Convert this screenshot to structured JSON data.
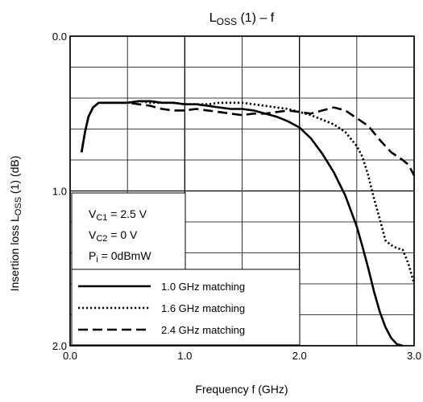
{
  "chart_data": {
    "type": "line",
    "title_main": "L",
    "title_sub": "OSS",
    "title_rest": " (1) – f",
    "xlabel": "Frequency   f   (GHz)",
    "ylabel_part1": "Insertion loss   L",
    "ylabel_sub": "OSS",
    "ylabel_part2": " (1)     (dB)",
    "xlim": [
      0.0,
      3.0
    ],
    "ylim": [
      0.0,
      2.0
    ],
    "y_inverted": true,
    "x_ticks": [
      "0.0",
      "1.0",
      "2.0",
      "3.0"
    ],
    "y_ticks": [
      "0.0",
      "1.0",
      "2.0"
    ],
    "grid": true,
    "conditions": [
      {
        "main": "V",
        "sub": "C1",
        "rest": " = 2.5 V"
      },
      {
        "main": "V",
        "sub": "C2",
        "rest": " = 0 V"
      },
      {
        "main": "P",
        "sub": "i",
        "rest": " = 0dBmW"
      }
    ],
    "legend_position": "bottom-left",
    "series": [
      {
        "name": "1.0 GHz matching",
        "style": "solid",
        "x": [
          0.1,
          0.13,
          0.16,
          0.2,
          0.25,
          0.3,
          0.4,
          0.5,
          0.6,
          0.7,
          0.8,
          0.9,
          1.0,
          1.1,
          1.2,
          1.3,
          1.4,
          1.5,
          1.6,
          1.7,
          1.8,
          1.9,
          2.0,
          2.1,
          2.2,
          2.3,
          2.4,
          2.5,
          2.55,
          2.6,
          2.65,
          2.7,
          2.75,
          2.8,
          2.85,
          2.9
        ],
        "y": [
          0.75,
          0.62,
          0.52,
          0.46,
          0.43,
          0.43,
          0.43,
          0.43,
          0.42,
          0.42,
          0.43,
          0.43,
          0.44,
          0.44,
          0.45,
          0.46,
          0.47,
          0.47,
          0.48,
          0.5,
          0.52,
          0.55,
          0.59,
          0.66,
          0.76,
          0.88,
          1.03,
          1.23,
          1.36,
          1.5,
          1.65,
          1.78,
          1.88,
          1.95,
          1.99,
          2.0
        ]
      },
      {
        "name": "1.6 GHz matching",
        "style": "dotted",
        "x": [
          0.1,
          0.13,
          0.16,
          0.2,
          0.25,
          0.3,
          0.4,
          0.5,
          0.6,
          0.7,
          0.8,
          0.9,
          1.0,
          1.1,
          1.2,
          1.3,
          1.4,
          1.5,
          1.6,
          1.7,
          1.8,
          1.9,
          2.0,
          2.1,
          2.2,
          2.3,
          2.4,
          2.5,
          2.55,
          2.6,
          2.65,
          2.7,
          2.75,
          2.8,
          2.85,
          2.9,
          2.95,
          3.0
        ],
        "y": [
          0.75,
          0.62,
          0.52,
          0.46,
          0.43,
          0.43,
          0.43,
          0.43,
          0.42,
          0.43,
          0.43,
          0.43,
          0.44,
          0.44,
          0.44,
          0.43,
          0.43,
          0.43,
          0.44,
          0.45,
          0.46,
          0.47,
          0.49,
          0.51,
          0.54,
          0.57,
          0.62,
          0.71,
          0.78,
          0.9,
          1.05,
          1.18,
          1.32,
          1.35,
          1.37,
          1.38,
          1.47,
          1.6
        ]
      },
      {
        "name": "2.4 GHz matching",
        "style": "dashed",
        "x": [
          0.1,
          0.13,
          0.16,
          0.2,
          0.25,
          0.3,
          0.4,
          0.5,
          0.6,
          0.7,
          0.8,
          0.9,
          1.0,
          1.1,
          1.2,
          1.3,
          1.4,
          1.5,
          1.6,
          1.7,
          1.8,
          1.9,
          2.0,
          2.1,
          2.2,
          2.3,
          2.4,
          2.5,
          2.6,
          2.7,
          2.8,
          2.9,
          2.95,
          3.0
        ],
        "y": [
          0.75,
          0.62,
          0.52,
          0.46,
          0.43,
          0.43,
          0.43,
          0.43,
          0.44,
          0.45,
          0.47,
          0.48,
          0.48,
          0.47,
          0.48,
          0.49,
          0.5,
          0.51,
          0.5,
          0.5,
          0.49,
          0.48,
          0.49,
          0.5,
          0.48,
          0.46,
          0.48,
          0.53,
          0.58,
          0.67,
          0.75,
          0.8,
          0.83,
          0.9
        ]
      }
    ]
  }
}
